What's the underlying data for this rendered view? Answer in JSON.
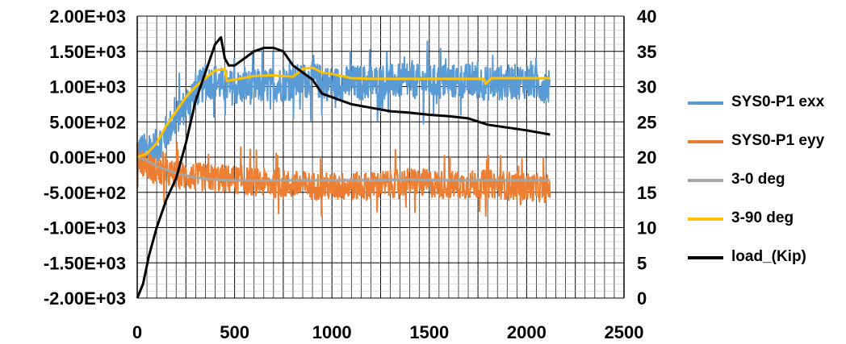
{
  "chart_data": {
    "type": "line",
    "title": "",
    "xlabel": "",
    "ylabel": "",
    "y2label": "",
    "xlim": [
      0,
      2500
    ],
    "ylim": [
      -2000,
      2000
    ],
    "y2lim": [
      0,
      40
    ],
    "x_ticks": [
      "0",
      "500",
      "1000",
      "1500",
      "2000",
      "2500"
    ],
    "y_ticks": [
      "2.00E+03",
      "1.50E+03",
      "1.00E+03",
      "5.00E+02",
      "0.00E+00",
      "-5.00E+02",
      "-1.00E+03",
      "-1.50E+03",
      "-2.00E+03"
    ],
    "y2_ticks": [
      "40",
      "35",
      "30",
      "25",
      "20",
      "15",
      "10",
      "5",
      "0"
    ],
    "grid": true,
    "legend_position": "right",
    "series": [
      {
        "name": "SYS0-P1 exx",
        "axis": "left",
        "color": "#5B9BD5",
        "noisy": true,
        "noise_amplitude": 250,
        "x": [
          0,
          50,
          100,
          150,
          200,
          250,
          300,
          350,
          400,
          450,
          500,
          600,
          700,
          800,
          900,
          1000,
          1100,
          1200,
          1300,
          1400,
          1500,
          1600,
          1700,
          1800,
          1900,
          2000,
          2120
        ],
        "y": [
          100,
          80,
          150,
          350,
          550,
          750,
          950,
          1050,
          1080,
          1000,
          980,
          1000,
          1020,
          1060,
          1100,
          1030,
          1050,
          1060,
          1070,
          1080,
          1060,
          1070,
          1080,
          1050,
          1060,
          1080,
          1000
        ]
      },
      {
        "name": "SYS0-P1 eyy",
        "axis": "left",
        "color": "#ED7D31",
        "noisy": true,
        "noise_amplitude": 200,
        "x": [
          0,
          50,
          100,
          200,
          300,
          400,
          500,
          700,
          1000,
          1200,
          1400,
          1600,
          1800,
          2000,
          2120
        ],
        "y": [
          0,
          -120,
          -200,
          -250,
          -280,
          -300,
          -320,
          -380,
          -420,
          -410,
          -350,
          -400,
          -380,
          -420,
          -450
        ]
      },
      {
        "name": "3-0 deg",
        "axis": "left",
        "color": "#A5A5A5",
        "noisy": false,
        "x": [
          0,
          50,
          100,
          200,
          300,
          400,
          500,
          600,
          800,
          1000,
          1200,
          1400,
          1600,
          1800,
          2000,
          2120
        ],
        "y": [
          0,
          -50,
          -130,
          -230,
          -290,
          -320,
          -330,
          -335,
          -330,
          -330,
          -330,
          -320,
          -330,
          -330,
          -330,
          -330
        ]
      },
      {
        "name": "3-90 deg",
        "axis": "left",
        "color": "#FFC000",
        "noisy": false,
        "x": [
          0,
          50,
          100,
          150,
          200,
          250,
          300,
          350,
          400,
          450,
          460,
          500,
          600,
          700,
          800,
          850,
          900,
          950,
          1000,
          1050,
          1100,
          1200,
          1400,
          1600,
          1780,
          1790,
          1820,
          2000,
          2120
        ],
        "y": [
          0,
          50,
          200,
          450,
          650,
          850,
          1000,
          1120,
          1230,
          1250,
          1080,
          1100,
          1150,
          1160,
          1140,
          1250,
          1270,
          1200,
          1180,
          1150,
          1120,
          1110,
          1110,
          1110,
          1110,
          1040,
          1120,
          1120,
          1120
        ]
      },
      {
        "name": "load_(Kip)",
        "axis": "right",
        "color": "#000000",
        "noisy": false,
        "x": [
          0,
          30,
          60,
          100,
          150,
          200,
          250,
          300,
          350,
          400,
          430,
          450,
          470,
          500,
          550,
          600,
          650,
          700,
          750,
          800,
          850,
          900,
          950,
          1000,
          1100,
          1200,
          1300,
          1400,
          1500,
          1600,
          1700,
          1800,
          1900,
          2000,
          2120
        ],
        "y": [
          0,
          2,
          6,
          10,
          14,
          17,
          22,
          28,
          32,
          36,
          37,
          34,
          33,
          33,
          34,
          35,
          35.5,
          35.5,
          35,
          33,
          32,
          31,
          29,
          28.5,
          27.5,
          27,
          26.5,
          26.3,
          26,
          25.8,
          25.5,
          24.6,
          24.2,
          23.8,
          23.2
        ]
      }
    ]
  }
}
